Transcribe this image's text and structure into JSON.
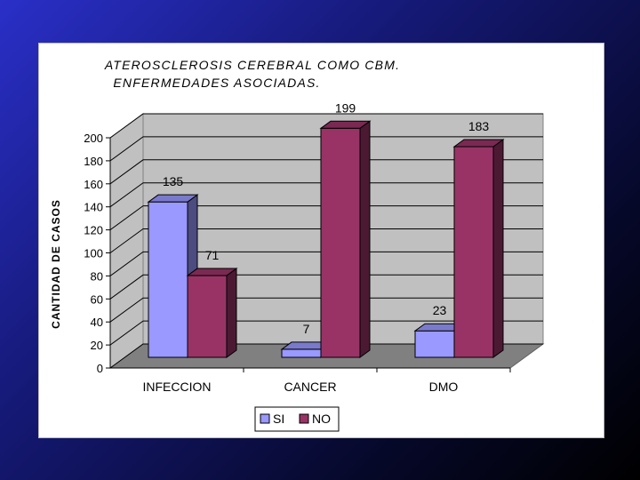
{
  "chart_data": {
    "type": "bar",
    "title": [
      "ATEROSCLEROSIS CEREBRAL COMO CBM.",
      "ENFERMEDADES ASOCIADAS."
    ],
    "xlabel": "",
    "ylabel": "CANTIDAD DE CASOS",
    "categories": [
      "INFECCION",
      "CANCER",
      "DMO"
    ],
    "series": [
      {
        "name": "SI",
        "values": [
          135,
          7,
          23
        ],
        "color": "#9999ff",
        "side_color": "#4c4c80",
        "top_color": "#7a7acc"
      },
      {
        "name": "NO",
        "values": [
          71,
          199,
          183
        ],
        "color": "#993366",
        "side_color": "#4c1933",
        "top_color": "#7a2952"
      }
    ],
    "ylim": [
      0,
      200
    ],
    "yticks": [
      0,
      20,
      40,
      60,
      80,
      100,
      120,
      140,
      160,
      180,
      200
    ],
    "grid": true,
    "three_d": true,
    "legend_position": "bottom",
    "colors": {
      "wall": "#c0c0c0",
      "floor": "#808080",
      "background_panel": "#ffffff"
    }
  }
}
